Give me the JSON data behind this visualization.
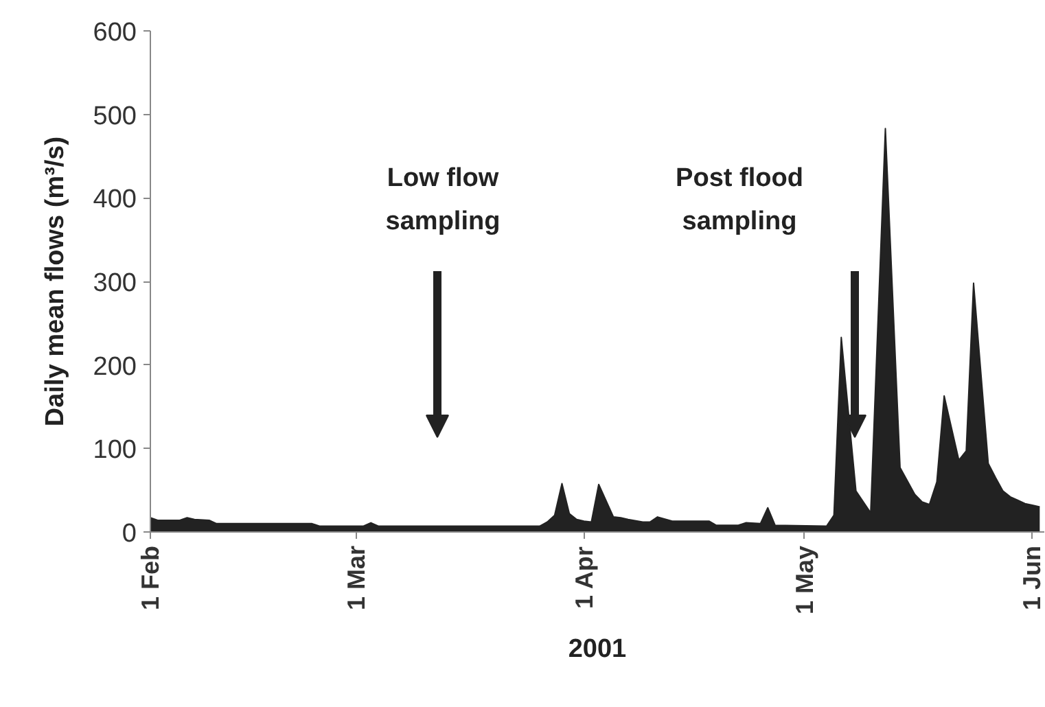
{
  "chart_data": {
    "type": "area",
    "xlabel": "2001",
    "ylabel": "Daily mean flows (m³/s)",
    "x": [
      "2001-02-01",
      "2001-02-02",
      "2001-02-05",
      "2001-02-06",
      "2001-02-07",
      "2001-02-09",
      "2001-02-10",
      "2001-02-23",
      "2001-02-24",
      "2001-03-02",
      "2001-03-03",
      "2001-03-04",
      "2001-03-26",
      "2001-03-27",
      "2001-03-28",
      "2001-03-29",
      "2001-03-30",
      "2001-03-31",
      "2001-04-01",
      "2001-04-02",
      "2001-04-03",
      "2001-04-05",
      "2001-04-06",
      "2001-04-07",
      "2001-04-09",
      "2001-04-10",
      "2001-04-11",
      "2001-04-13",
      "2001-04-18",
      "2001-04-19",
      "2001-04-22",
      "2001-04-23",
      "2001-04-25",
      "2001-04-26",
      "2001-04-27",
      "2001-05-04",
      "2001-05-05",
      "2001-05-06",
      "2001-05-08",
      "2001-05-10",
      "2001-05-12",
      "2001-05-14",
      "2001-05-15",
      "2001-05-16",
      "2001-05-17",
      "2001-05-18",
      "2001-05-19",
      "2001-05-20",
      "2001-05-22",
      "2001-05-23",
      "2001-05-24",
      "2001-05-26",
      "2001-05-27",
      "2001-05-28",
      "2001-05-29",
      "2001-05-30",
      "2001-05-31",
      "2001-06-01",
      "2001-06-02"
    ],
    "series": [
      {
        "color": "#222222",
        "values": [
          17,
          14,
          14,
          17,
          15,
          14,
          10,
          10,
          7,
          7,
          11,
          7,
          7,
          12,
          20,
          58,
          22,
          15,
          13,
          12,
          57,
          18,
          17,
          15,
          12,
          12,
          18,
          13,
          13,
          8,
          8,
          11,
          10,
          29,
          8,
          7,
          20,
          233,
          49,
          23,
          483,
          77,
          61,
          45,
          36,
          33,
          60,
          163,
          86,
          97,
          298,
          82,
          65,
          49,
          42,
          38,
          34,
          32,
          30
        ]
      }
    ],
    "xlim": [
      "2001-02-01",
      "2001-06-02T15:00"
    ],
    "xticks": [
      {
        "value": "2001-02-01",
        "label": "1 Feb"
      },
      {
        "value": "2001-03-01",
        "label": "1 Mar"
      },
      {
        "value": "2001-04-01",
        "label": "1 Apr"
      },
      {
        "value": "2001-05-01",
        "label": "1 May"
      },
      {
        "value": "2001-06-01",
        "label": "1 Jun"
      }
    ],
    "ylim": [
      0,
      600
    ],
    "yticks": [
      0,
      100,
      200,
      300,
      400,
      500,
      600
    ],
    "grid": false,
    "annotations": [
      "Low flow\nsampling",
      "Post flood\nsampling"
    ]
  }
}
